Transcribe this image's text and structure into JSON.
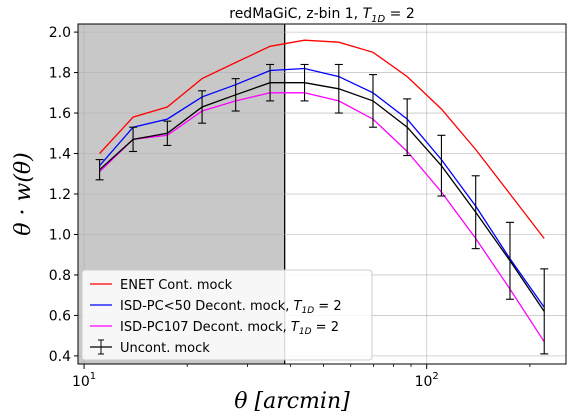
{
  "chart_data": {
    "type": "line",
    "title_parts": [
      "redMaGiC, z-bin 1, ",
      "T",
      "1D",
      " =  2"
    ],
    "xlabel_parts": [
      "θ",
      " [arcmin]"
    ],
    "ylabel_parts": [
      "θ · w(θ)"
    ],
    "xscale": "log",
    "xlim": [
      9.6,
      255
    ],
    "ylim": [
      0.36,
      2.04
    ],
    "x_ticks": [
      {
        "value": 10,
        "base": "10",
        "exp": "1"
      },
      {
        "value": 100,
        "base": "10",
        "exp": "2"
      }
    ],
    "y_ticks": [
      {
        "value": 0.4,
        "label": "0.4"
      },
      {
        "value": 0.6,
        "label": "0.6"
      },
      {
        "value": 0.8,
        "label": "0.8"
      },
      {
        "value": 1.0,
        "label": "1.0"
      },
      {
        "value": 1.2,
        "label": "1.2"
      },
      {
        "value": 1.4,
        "label": "1.4"
      },
      {
        "value": 1.6,
        "label": "1.6"
      },
      {
        "value": 1.8,
        "label": "1.8"
      },
      {
        "value": 2.0,
        "label": "2.0"
      }
    ],
    "grid": true,
    "masked_region": {
      "x_from": 9.6,
      "x_to": 38.5,
      "color": "#c8c8c8"
    },
    "x": [
      11.1,
      13.9,
      17.5,
      22.1,
      27.7,
      34.9,
      44.0,
      55.4,
      69.7,
      87.7,
      110.4,
      139.0,
      175.0,
      220.3
    ],
    "series": [
      {
        "name": "ENET Cont. mock",
        "color": "#ff0000",
        "errorbars": false,
        "values": [
          1.4,
          1.58,
          1.63,
          1.77,
          1.85,
          1.93,
          1.96,
          1.95,
          1.9,
          1.78,
          1.62,
          1.42,
          1.2,
          0.98
        ]
      },
      {
        "name": "ISD-PC<50 Decont. mock",
        "name_suffix": [
          "T",
          "1D",
          " = 2"
        ],
        "color": "#0000ff",
        "errorbars": false,
        "values": [
          1.34,
          1.53,
          1.57,
          1.68,
          1.74,
          1.81,
          1.82,
          1.78,
          1.7,
          1.57,
          1.37,
          1.14,
          0.88,
          0.64
        ]
      },
      {
        "name": "ISD-PC107 Decont. mock",
        "name_suffix": [
          "T",
          "1D",
          " = 2"
        ],
        "color": "#ff00ff",
        "errorbars": false,
        "values": [
          1.31,
          1.47,
          1.49,
          1.61,
          1.66,
          1.7,
          1.7,
          1.66,
          1.57,
          1.41,
          1.21,
          0.98,
          0.73,
          0.47
        ]
      },
      {
        "name": "Uncont. mock",
        "color": "#000000",
        "errorbars": true,
        "values": [
          1.32,
          1.47,
          1.5,
          1.63,
          1.69,
          1.75,
          1.75,
          1.72,
          1.66,
          1.53,
          1.34,
          1.11,
          0.87,
          0.62
        ],
        "errors": [
          0.05,
          0.06,
          0.06,
          0.08,
          0.08,
          0.09,
          0.09,
          0.12,
          0.13,
          0.14,
          0.15,
          0.18,
          0.19,
          0.21
        ]
      }
    ],
    "legend_position": "lower-left"
  }
}
